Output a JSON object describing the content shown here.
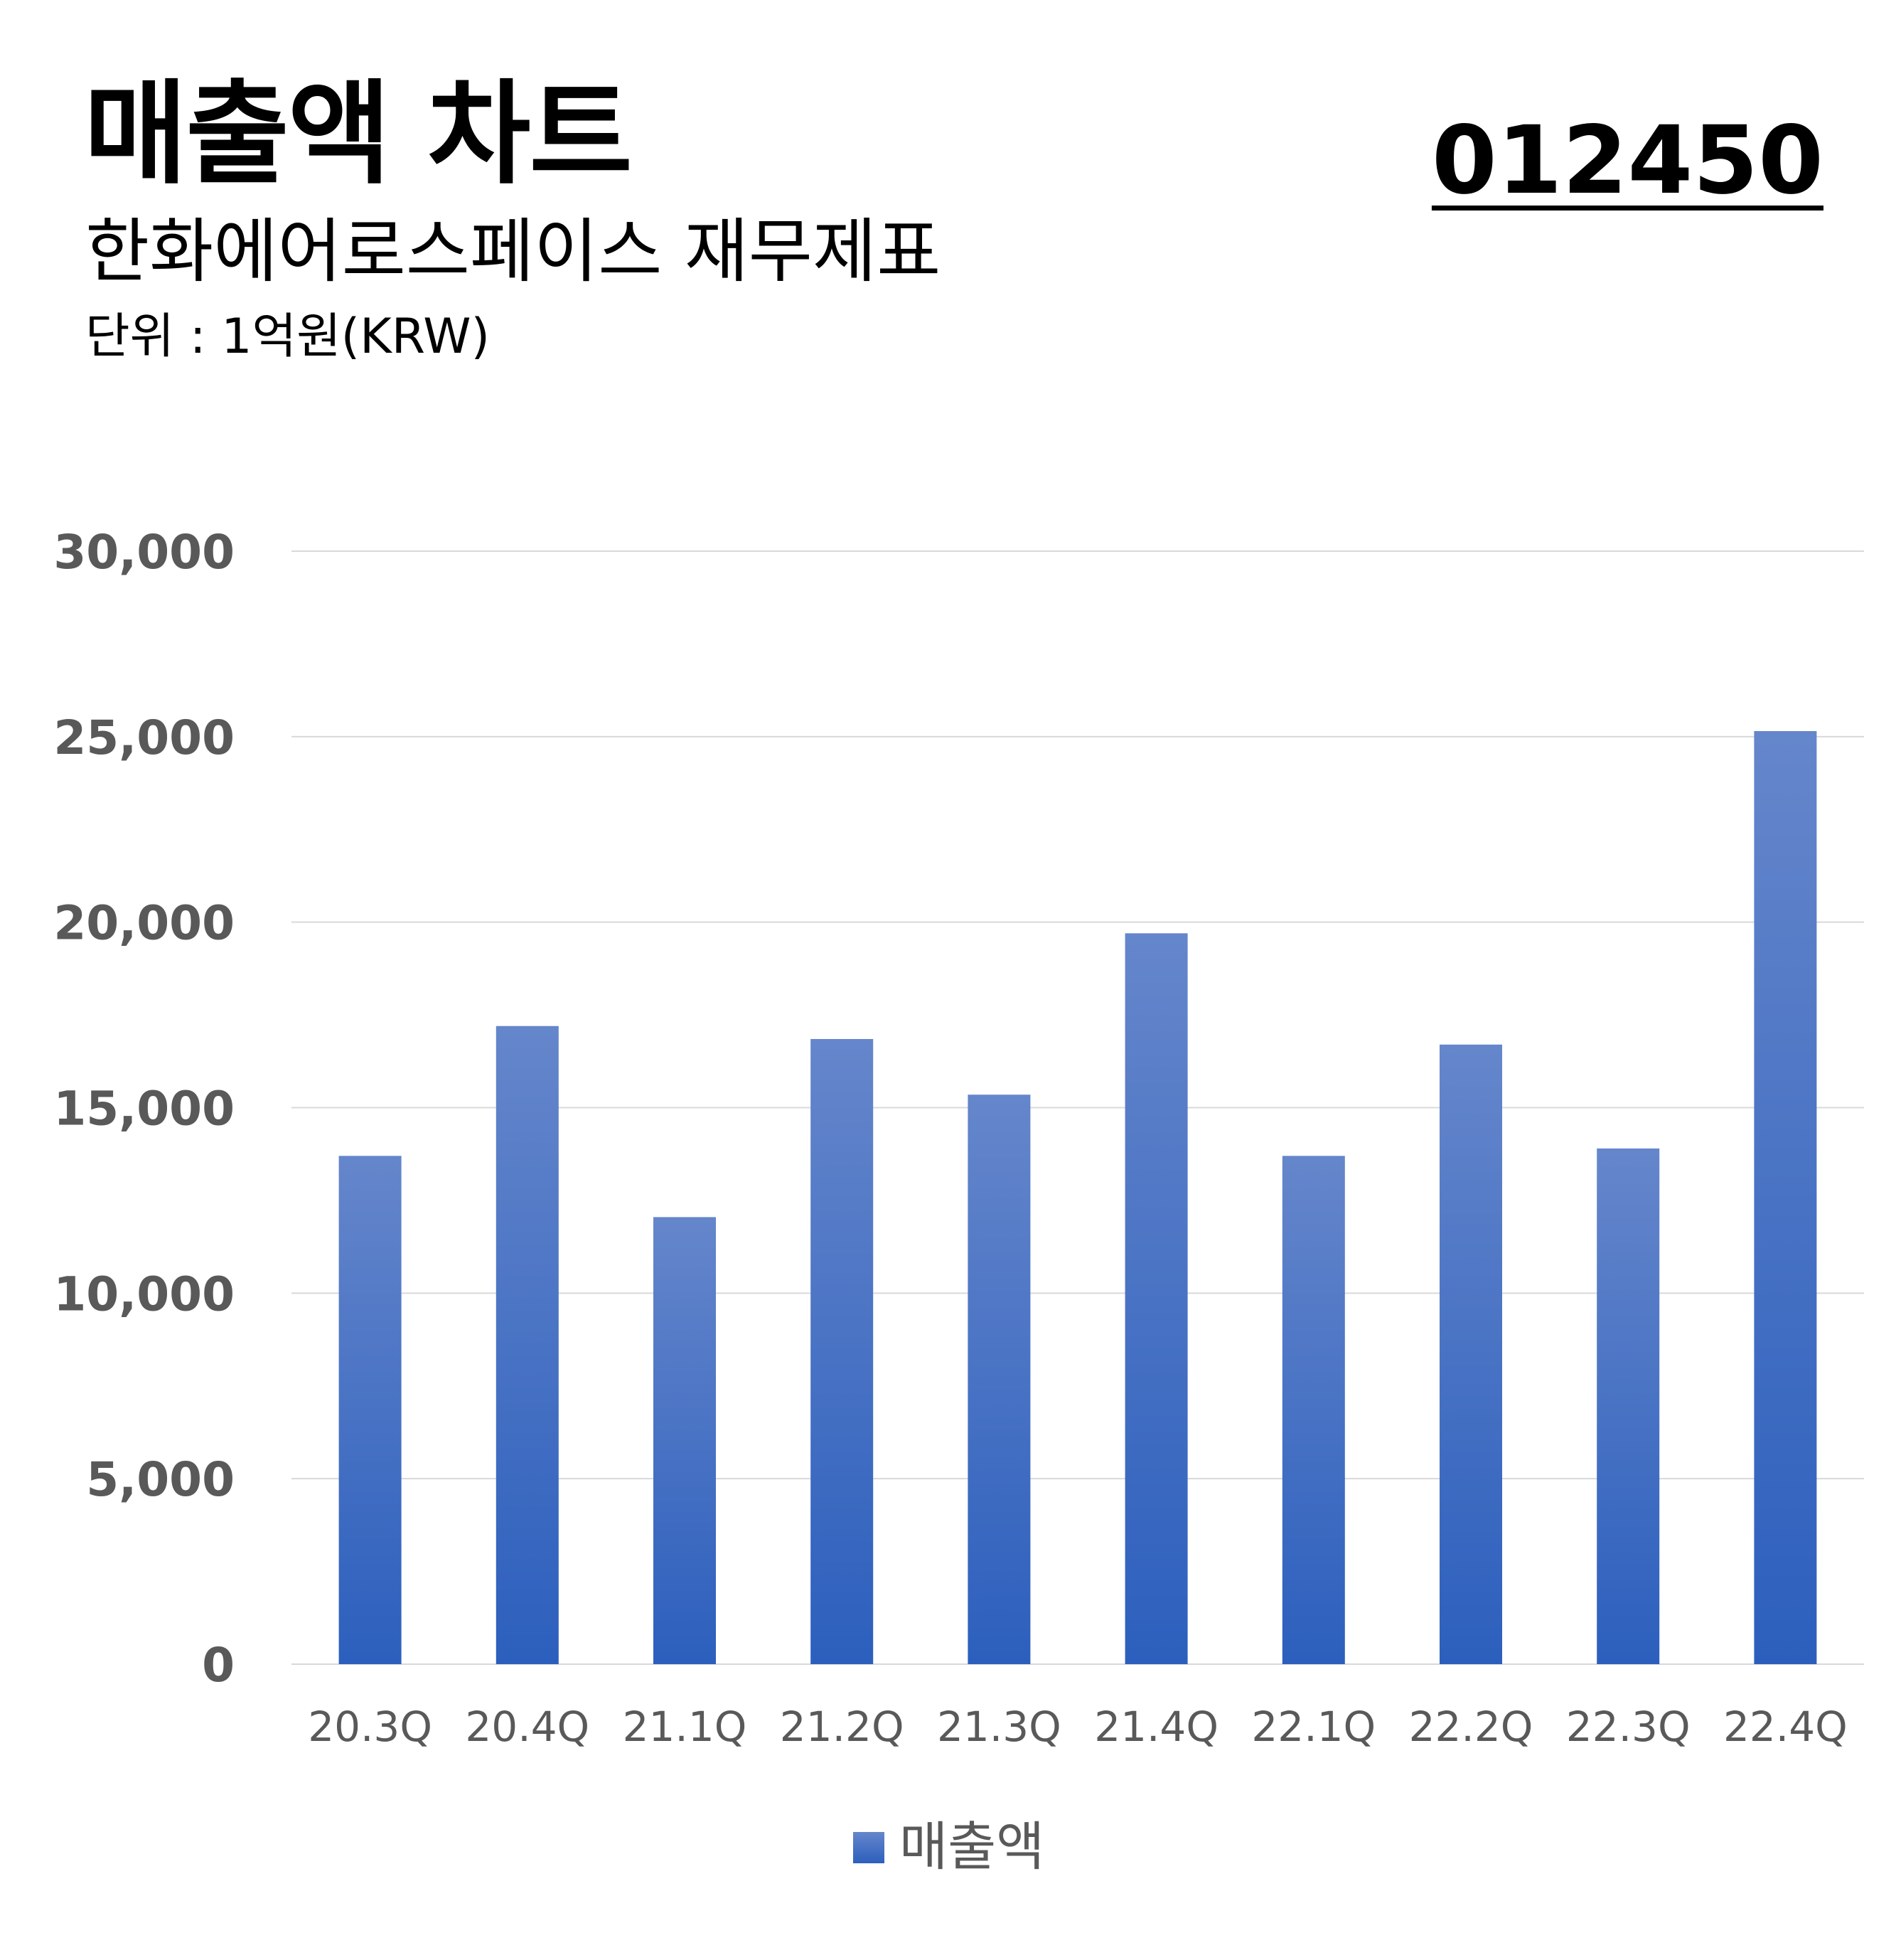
{
  "header": {
    "title": "매출액 차트",
    "subtitle": "한화에어로스페이스 재무제표",
    "unit": "단위 : 1억원(KRW)",
    "code": "012450"
  },
  "colors": {
    "bar_top": "#6586CB",
    "bar_bottom": "#2C5FBD",
    "grid": "#D9D9D9",
    "axis_text": "#595959"
  },
  "chart_data": {
    "type": "bar",
    "categories": [
      "20.3Q",
      "20.4Q",
      "21.1Q",
      "21.2Q",
      "21.3Q",
      "21.4Q",
      "22.1Q",
      "22.2Q",
      "22.3Q",
      "22.4Q"
    ],
    "series": [
      {
        "name": "매출액",
        "values": [
          13700,
          17200,
          12050,
          16850,
          15350,
          19700,
          13700,
          16700,
          13900,
          25150
        ]
      }
    ],
    "ylim": [
      0,
      30000
    ],
    "yticks": [
      0,
      5000,
      10000,
      15000,
      20000,
      25000,
      30000
    ],
    "ytick_labels": [
      "0",
      "5,000",
      "10,000",
      "15,000",
      "20,000",
      "25,000",
      "30,000"
    ],
    "grid": true,
    "legend": "bottom"
  }
}
